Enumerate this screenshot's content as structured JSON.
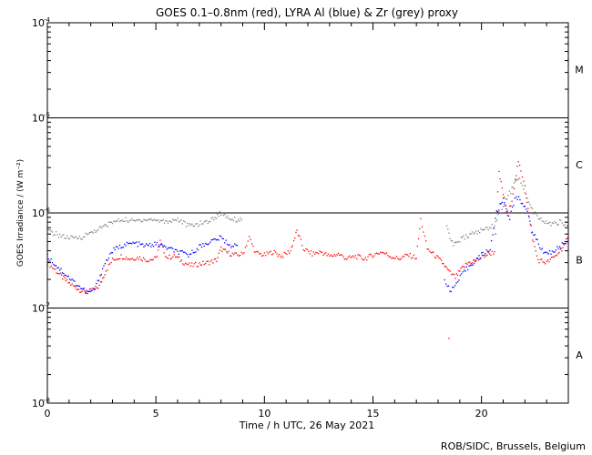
{
  "chart_data": {
    "type": "scatter",
    "title": "GOES 0.1–0.8nm (red), LYRA Al (blue) & Zr (grey) proxy",
    "xlabel": "Time / h UTC, 26 May 2021",
    "ylabel": "GOES Irradiance / (W m⁻²)",
    "xlim": [
      0,
      24
    ],
    "ylim": [
      1e-08,
      0.0001
    ],
    "yscale": "log",
    "x_ticks": [
      0,
      5,
      10,
      15,
      20
    ],
    "y_ticks": [
      {
        "base": "10",
        "exp": "-4",
        "value": 0.0001
      },
      {
        "base": "10",
        "exp": "-5",
        "value": 1e-05
      },
      {
        "base": "10",
        "exp": "-6",
        "value": 1e-06
      },
      {
        "base": "10",
        "exp": "-7",
        "value": 1e-07
      },
      {
        "base": "10",
        "exp": "-8",
        "value": 1e-08
      }
    ],
    "class_lines": [
      1e-05,
      1e-06,
      1e-07
    ],
    "flare_classes": [
      {
        "label": "M",
        "value": 3.2e-05
      },
      {
        "label": "C",
        "value": 3.2e-06
      },
      {
        "label": "B",
        "value": 3.2e-07
      },
      {
        "label": "A",
        "value": 3.2e-08
      }
    ],
    "grid": false,
    "series": [
      {
        "name": "GOES 0.1–0.8nm",
        "color": "#ff0000",
        "points": [
          [
            0,
            3e-07
          ],
          [
            0.3,
            2.6e-07
          ],
          [
            0.6,
            2.2e-07
          ],
          [
            0.9,
            1.9e-07
          ],
          [
            1.2,
            1.7e-07
          ],
          [
            1.5,
            1.55e-07
          ],
          [
            1.8,
            1.45e-07
          ],
          [
            2.1,
            1.55e-07
          ],
          [
            2.4,
            1.7e-07
          ],
          [
            2.7,
            2.5e-07
          ],
          [
            3.0,
            3.2e-07
          ],
          [
            3.4,
            3.5e-07
          ],
          [
            3.8,
            3.3e-07
          ],
          [
            4.2,
            3.4e-07
          ],
          [
            4.6,
            3.2e-07
          ],
          [
            5.0,
            3.3e-07
          ],
          [
            5.2,
            5e-07
          ],
          [
            5.5,
            3.4e-07
          ],
          [
            5.9,
            3.5e-07
          ],
          [
            6.3,
            3e-07
          ],
          [
            6.6,
            2.8e-07
          ],
          [
            7.0,
            2.9e-07
          ],
          [
            7.4,
            3e-07
          ],
          [
            7.8,
            3.2e-07
          ],
          [
            8.0,
            4.2e-07
          ],
          [
            8.3,
            3.8e-07
          ],
          [
            8.7,
            3.6e-07
          ],
          [
            9.0,
            3.7e-07
          ],
          [
            9.3,
            5.5e-07
          ],
          [
            9.6,
            3.8e-07
          ],
          [
            10.0,
            3.6e-07
          ],
          [
            10.4,
            3.9e-07
          ],
          [
            10.8,
            3.5e-07
          ],
          [
            11.2,
            4e-07
          ],
          [
            11.5,
            6.5e-07
          ],
          [
            11.8,
            4.2e-07
          ],
          [
            12.2,
            3.7e-07
          ],
          [
            12.6,
            3.9e-07
          ],
          [
            13.0,
            3.5e-07
          ],
          [
            13.4,
            3.7e-07
          ],
          [
            13.8,
            3.3e-07
          ],
          [
            14.2,
            3.5e-07
          ],
          [
            14.6,
            3.3e-07
          ],
          [
            15.0,
            3.6e-07
          ],
          [
            15.4,
            3.9e-07
          ],
          [
            15.8,
            3.5e-07
          ],
          [
            16.2,
            3.3e-07
          ],
          [
            16.6,
            3.6e-07
          ],
          [
            17.0,
            3.4e-07
          ],
          [
            17.2,
            8.5e-07
          ],
          [
            17.5,
            4.2e-07
          ],
          [
            17.9,
            3.5e-07
          ],
          [
            18.2,
            3e-07
          ],
          [
            18.5,
            2.4e-07
          ],
          [
            18.8,
            2.1e-07
          ],
          [
            19.1,
            2.6e-07
          ],
          [
            19.4,
            3e-07
          ],
          [
            19.8,
            3.2e-07
          ],
          [
            20.2,
            3.6e-07
          ],
          [
            20.6,
            3.9e-07
          ],
          [
            20.8,
            2.6e-06
          ],
          [
            21.0,
            1.6e-06
          ],
          [
            21.2,
            9e-07
          ],
          [
            21.4,
            1.4e-06
          ],
          [
            21.7,
            3.4e-06
          ],
          [
            22.0,
            2e-06
          ],
          [
            22.3,
            6e-07
          ],
          [
            22.6,
            3.2e-07
          ],
          [
            23.0,
            3e-07
          ],
          [
            23.4,
            3.5e-07
          ],
          [
            23.7,
            4.2e-07
          ],
          [
            24.0,
            5.5e-07
          ],
          [
            18.5,
            4.8e-08
          ]
        ]
      },
      {
        "name": "LYRA Al",
        "color": "#0000ff",
        "points": [
          [
            0,
            3.5e-07
          ],
          [
            0.4,
            2.8e-07
          ],
          [
            0.8,
            2.3e-07
          ],
          [
            1.2,
            1.9e-07
          ],
          [
            1.6,
            1.6e-07
          ],
          [
            1.9,
            1.45e-07
          ],
          [
            2.2,
            1.6e-07
          ],
          [
            2.6,
            2.8e-07
          ],
          [
            3.0,
            4e-07
          ],
          [
            3.5,
            4.6e-07
          ],
          [
            4.0,
            4.8e-07
          ],
          [
            4.5,
            4.5e-07
          ],
          [
            5.0,
            4.7e-07
          ],
          [
            5.5,
            4.3e-07
          ],
          [
            6.0,
            3.9e-07
          ],
          [
            6.5,
            3.6e-07
          ],
          [
            7.0,
            4.4e-07
          ],
          [
            7.5,
            5e-07
          ],
          [
            8.0,
            5.5e-07
          ],
          [
            8.4,
            4.6e-07
          ],
          [
            8.8,
            4.4e-07
          ],
          [
            18.3,
            2e-07
          ],
          [
            18.6,
            1.5e-07
          ],
          [
            18.9,
            1.9e-07
          ],
          [
            19.2,
            2.4e-07
          ],
          [
            19.6,
            3e-07
          ],
          [
            20.0,
            3.6e-07
          ],
          [
            20.4,
            4.2e-07
          ],
          [
            20.7,
            1e-06
          ],
          [
            21.0,
            1.4e-06
          ],
          [
            21.3,
            9e-07
          ],
          [
            21.6,
            1.5e-06
          ],
          [
            22.0,
            1.2e-06
          ],
          [
            22.4,
            6e-07
          ],
          [
            22.8,
            4e-07
          ],
          [
            23.2,
            3.8e-07
          ],
          [
            23.6,
            4.4e-07
          ],
          [
            24.0,
            5.2e-07
          ]
        ]
      },
      {
        "name": "LYRA Zr",
        "color": "#808080",
        "points": [
          [
            0,
            6.5e-07
          ],
          [
            0.4,
            6e-07
          ],
          [
            0.8,
            5.6e-07
          ],
          [
            1.2,
            5.4e-07
          ],
          [
            1.6,
            5.6e-07
          ],
          [
            2.0,
            6.2e-07
          ],
          [
            2.5,
            7e-07
          ],
          [
            3.0,
            8e-07
          ],
          [
            3.5,
            8.5e-07
          ],
          [
            4.0,
            8.2e-07
          ],
          [
            4.5,
            8.6e-07
          ],
          [
            5.0,
            8.4e-07
          ],
          [
            5.5,
            8.1e-07
          ],
          [
            6.0,
            8.6e-07
          ],
          [
            6.5,
            7.3e-07
          ],
          [
            7.0,
            7.7e-07
          ],
          [
            7.5,
            8.3e-07
          ],
          [
            8.0,
            1e-06
          ],
          [
            8.4,
            8.8e-07
          ],
          [
            8.8,
            8.4e-07
          ],
          [
            9.0,
            9e-07
          ],
          [
            18.4,
            7e-07
          ],
          [
            18.7,
            4.5e-07
          ],
          [
            19.0,
            5.2e-07
          ],
          [
            19.4,
            5.8e-07
          ],
          [
            19.8,
            6.3e-07
          ],
          [
            20.2,
            6.8e-07
          ],
          [
            20.6,
            7.5e-07
          ],
          [
            21.0,
            1.2e-06
          ],
          [
            21.4,
            1.8e-06
          ],
          [
            21.7,
            2.4e-06
          ],
          [
            22.0,
            1.6e-06
          ],
          [
            22.4,
            1e-06
          ],
          [
            22.8,
            8.2e-07
          ],
          [
            23.2,
            7.6e-07
          ],
          [
            23.6,
            8e-07
          ],
          [
            24.0,
            7.5e-07
          ]
        ]
      }
    ]
  },
  "footer": {
    "credit": "ROB/SIDC, Brussels, Belgium"
  }
}
